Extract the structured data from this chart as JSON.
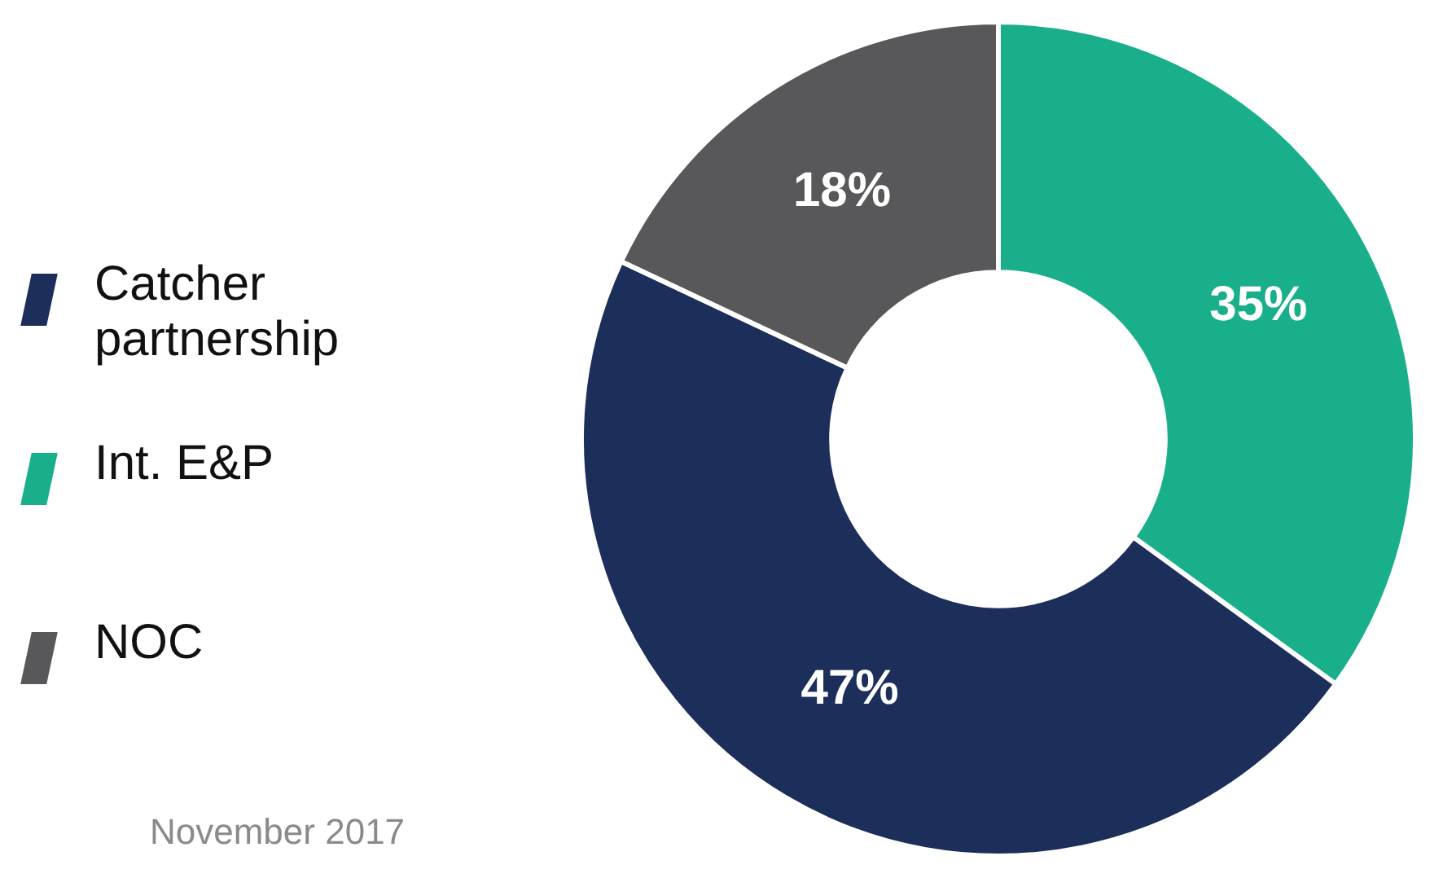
{
  "chart_data": {
    "type": "donut",
    "categories": [
      "Int. E&P",
      "Catcher partnership",
      "NOC"
    ],
    "values": [
      35,
      47,
      18
    ],
    "colors": [
      "#1aaf8b",
      "#1c2e5a",
      "#58585a"
    ],
    "value_labels": [
      "35%",
      "47%",
      "18%"
    ],
    "legend": "left",
    "annotations": [
      "November 2017"
    ]
  }
}
